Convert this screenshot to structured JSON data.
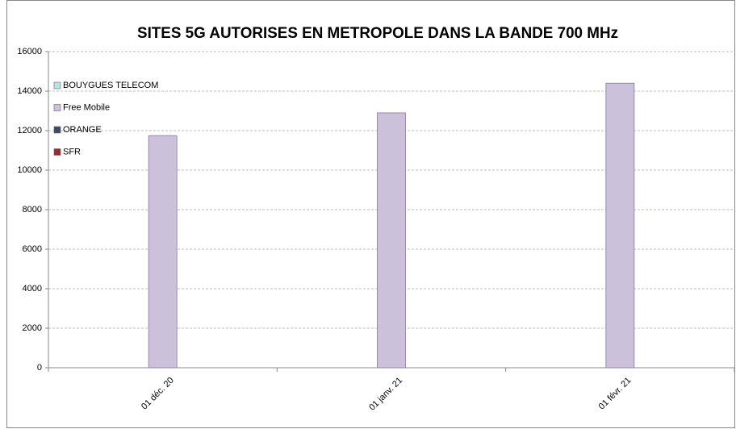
{
  "chart_data": {
    "type": "bar",
    "stacked": true,
    "title": "SITES 5G AUTORISES EN METROPOLE DANS LA BANDE 700 MHz",
    "categories": [
      "01 déc. 20",
      "01 janv. 21",
      "01 févr. 21"
    ],
    "series": [
      {
        "name": "BOUYGUES TELECOM",
        "color": "#b9e3e1",
        "values": [
          0,
          0,
          0
        ]
      },
      {
        "name": "Free Mobile",
        "color": "#ccc1da",
        "values": [
          11750,
          12900,
          14400
        ]
      },
      {
        "name": "ORANGE",
        "color": "#3d4b6b",
        "values": [
          0,
          0,
          0
        ]
      },
      {
        "name": "SFR",
        "color": "#a3262a",
        "values": [
          0,
          0,
          0
        ]
      }
    ],
    "ylim": [
      0,
      16000
    ],
    "yticks": [
      0,
      2000,
      4000,
      6000,
      8000,
      10000,
      12000,
      14000,
      16000
    ],
    "grid": true,
    "legend": "top-left"
  }
}
